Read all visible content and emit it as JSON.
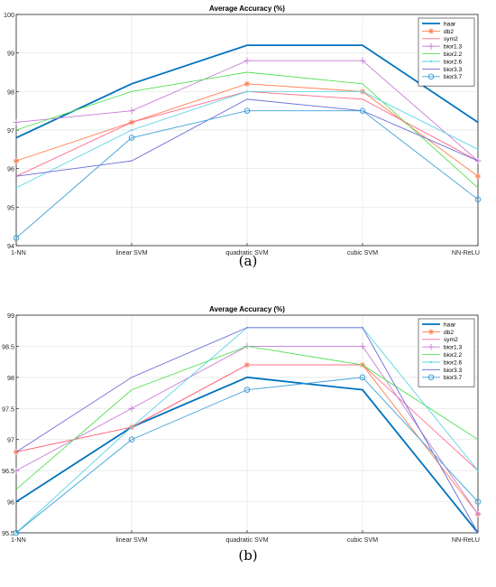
{
  "colors": {
    "haar": "#0072BD",
    "db2": "#FF7F50",
    "sym2": "#FF6B8B",
    "bior1.3": "#C77CD6",
    "bior2.2": "#55E055",
    "bior2.6": "#5CD3E6",
    "bior3.3": "#6C6CD8",
    "bior3.7": "#3FA0D8"
  },
  "captions": [
    "(a)",
    "(b)"
  ],
  "chart_data": [
    {
      "type": "line",
      "title": "Average Accuracy  (%)",
      "xlabel": "",
      "ylabel": "",
      "categories": [
        "1-NN",
        "linear SVM",
        "quadratic SVM",
        "cubic SVM",
        "NN-ReLU"
      ],
      "ylim": [
        94,
        100
      ],
      "yticks": [
        94,
        95,
        96,
        97,
        98,
        99,
        100
      ],
      "grid": true,
      "legend": "top-right",
      "series": [
        {
          "name": "haar",
          "values": [
            96.8,
            98.2,
            99.2,
            99.2,
            97.2
          ],
          "marker": "none"
        },
        {
          "name": "db2",
          "values": [
            96.2,
            97.2,
            98.2,
            98.0,
            95.8
          ],
          "marker": "asterisk"
        },
        {
          "name": "sym2",
          "values": [
            95.8,
            97.2,
            98.0,
            97.8,
            96.2
          ],
          "marker": "none"
        },
        {
          "name": "bior1.3",
          "values": [
            97.2,
            97.5,
            98.8,
            98.8,
            96.2
          ],
          "marker": "plus"
        },
        {
          "name": "bior2.2",
          "values": [
            97.0,
            98.0,
            98.5,
            98.2,
            95.5
          ],
          "marker": "none"
        },
        {
          "name": "bior2.6",
          "values": [
            95.5,
            97.0,
            98.0,
            98.0,
            96.5
          ],
          "marker": "point"
        },
        {
          "name": "bior3.3",
          "values": [
            95.8,
            96.2,
            97.8,
            97.5,
            96.2
          ],
          "marker": "none"
        },
        {
          "name": "bior3.7",
          "values": [
            94.2,
            96.8,
            97.5,
            97.5,
            95.2
          ],
          "marker": "circle"
        }
      ]
    },
    {
      "type": "line",
      "title": "Average Accuracy  (%)",
      "xlabel": "",
      "ylabel": "",
      "categories": [
        "1-NN",
        "linear SVM",
        "quadratic SVM",
        "cubic SVM",
        "NN-ReLU"
      ],
      "ylim": [
        95.5,
        99
      ],
      "yticks": [
        95.5,
        96,
        96.5,
        97,
        97.5,
        98,
        98.5,
        99
      ],
      "grid": true,
      "legend": "top-right",
      "series": [
        {
          "name": "haar",
          "values": [
            96.0,
            97.2,
            98.0,
            97.8,
            95.5
          ],
          "marker": "none"
        },
        {
          "name": "db2",
          "values": [
            96.8,
            97.2,
            98.2,
            98.2,
            95.8
          ],
          "marker": "asterisk"
        },
        {
          "name": "sym2",
          "values": [
            96.8,
            97.2,
            98.2,
            98.2,
            96.5
          ],
          "marker": "none"
        },
        {
          "name": "bior1.3",
          "values": [
            96.5,
            97.5,
            98.5,
            98.5,
            95.8
          ],
          "marker": "plus"
        },
        {
          "name": "bior2.2",
          "values": [
            96.2,
            97.8,
            98.5,
            98.2,
            97.0
          ],
          "marker": "none"
        },
        {
          "name": "bior2.6",
          "values": [
            95.5,
            97.2,
            98.8,
            98.8,
            96.5
          ],
          "marker": "point"
        },
        {
          "name": "bior3.3",
          "values": [
            96.8,
            98.0,
            98.8,
            98.8,
            95.5
          ],
          "marker": "none"
        },
        {
          "name": "bior3.7",
          "values": [
            95.5,
            97.0,
            97.8,
            98.0,
            96.0
          ],
          "marker": "circle"
        }
      ]
    }
  ]
}
